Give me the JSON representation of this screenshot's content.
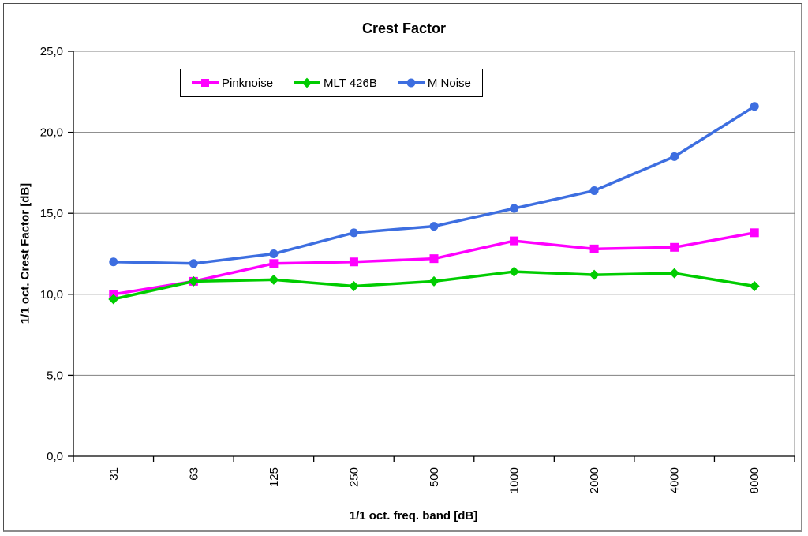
{
  "chart_data": {
    "type": "line",
    "title": "Crest Factor",
    "xlabel": "1/1 oct. freq. band [dB]",
    "ylabel": "1/1 oct. Crest Factor [dB]",
    "categories": [
      "31",
      "63",
      "125",
      "250",
      "500",
      "1000",
      "2000",
      "4000",
      "8000"
    ],
    "series": [
      {
        "name": "Pinknoise",
        "color": "#ff00ff",
        "marker": "square",
        "values": [
          10.0,
          10.8,
          11.9,
          12.0,
          12.2,
          13.3,
          12.8,
          12.9,
          13.8
        ]
      },
      {
        "name": "MLT 426B",
        "color": "#00cc00",
        "marker": "diamond",
        "values": [
          9.7,
          10.8,
          10.9,
          10.5,
          10.8,
          11.4,
          11.2,
          11.3,
          10.5
        ]
      },
      {
        "name": "M Noise",
        "color": "#3d6ee0",
        "marker": "circle",
        "values": [
          12.0,
          11.9,
          12.5,
          13.8,
          14.2,
          15.3,
          16.4,
          18.5,
          21.6
        ]
      }
    ],
    "ylim": [
      0,
      25
    ],
    "ytick_step": 5,
    "ytick_labels": [
      "0,0",
      "5,0",
      "10,0",
      "15,0",
      "20,0",
      "25,0"
    ],
    "grid": true,
    "legend_position": "top-center-inside",
    "gridline_color": "#808080",
    "axis_color": "#000000"
  }
}
